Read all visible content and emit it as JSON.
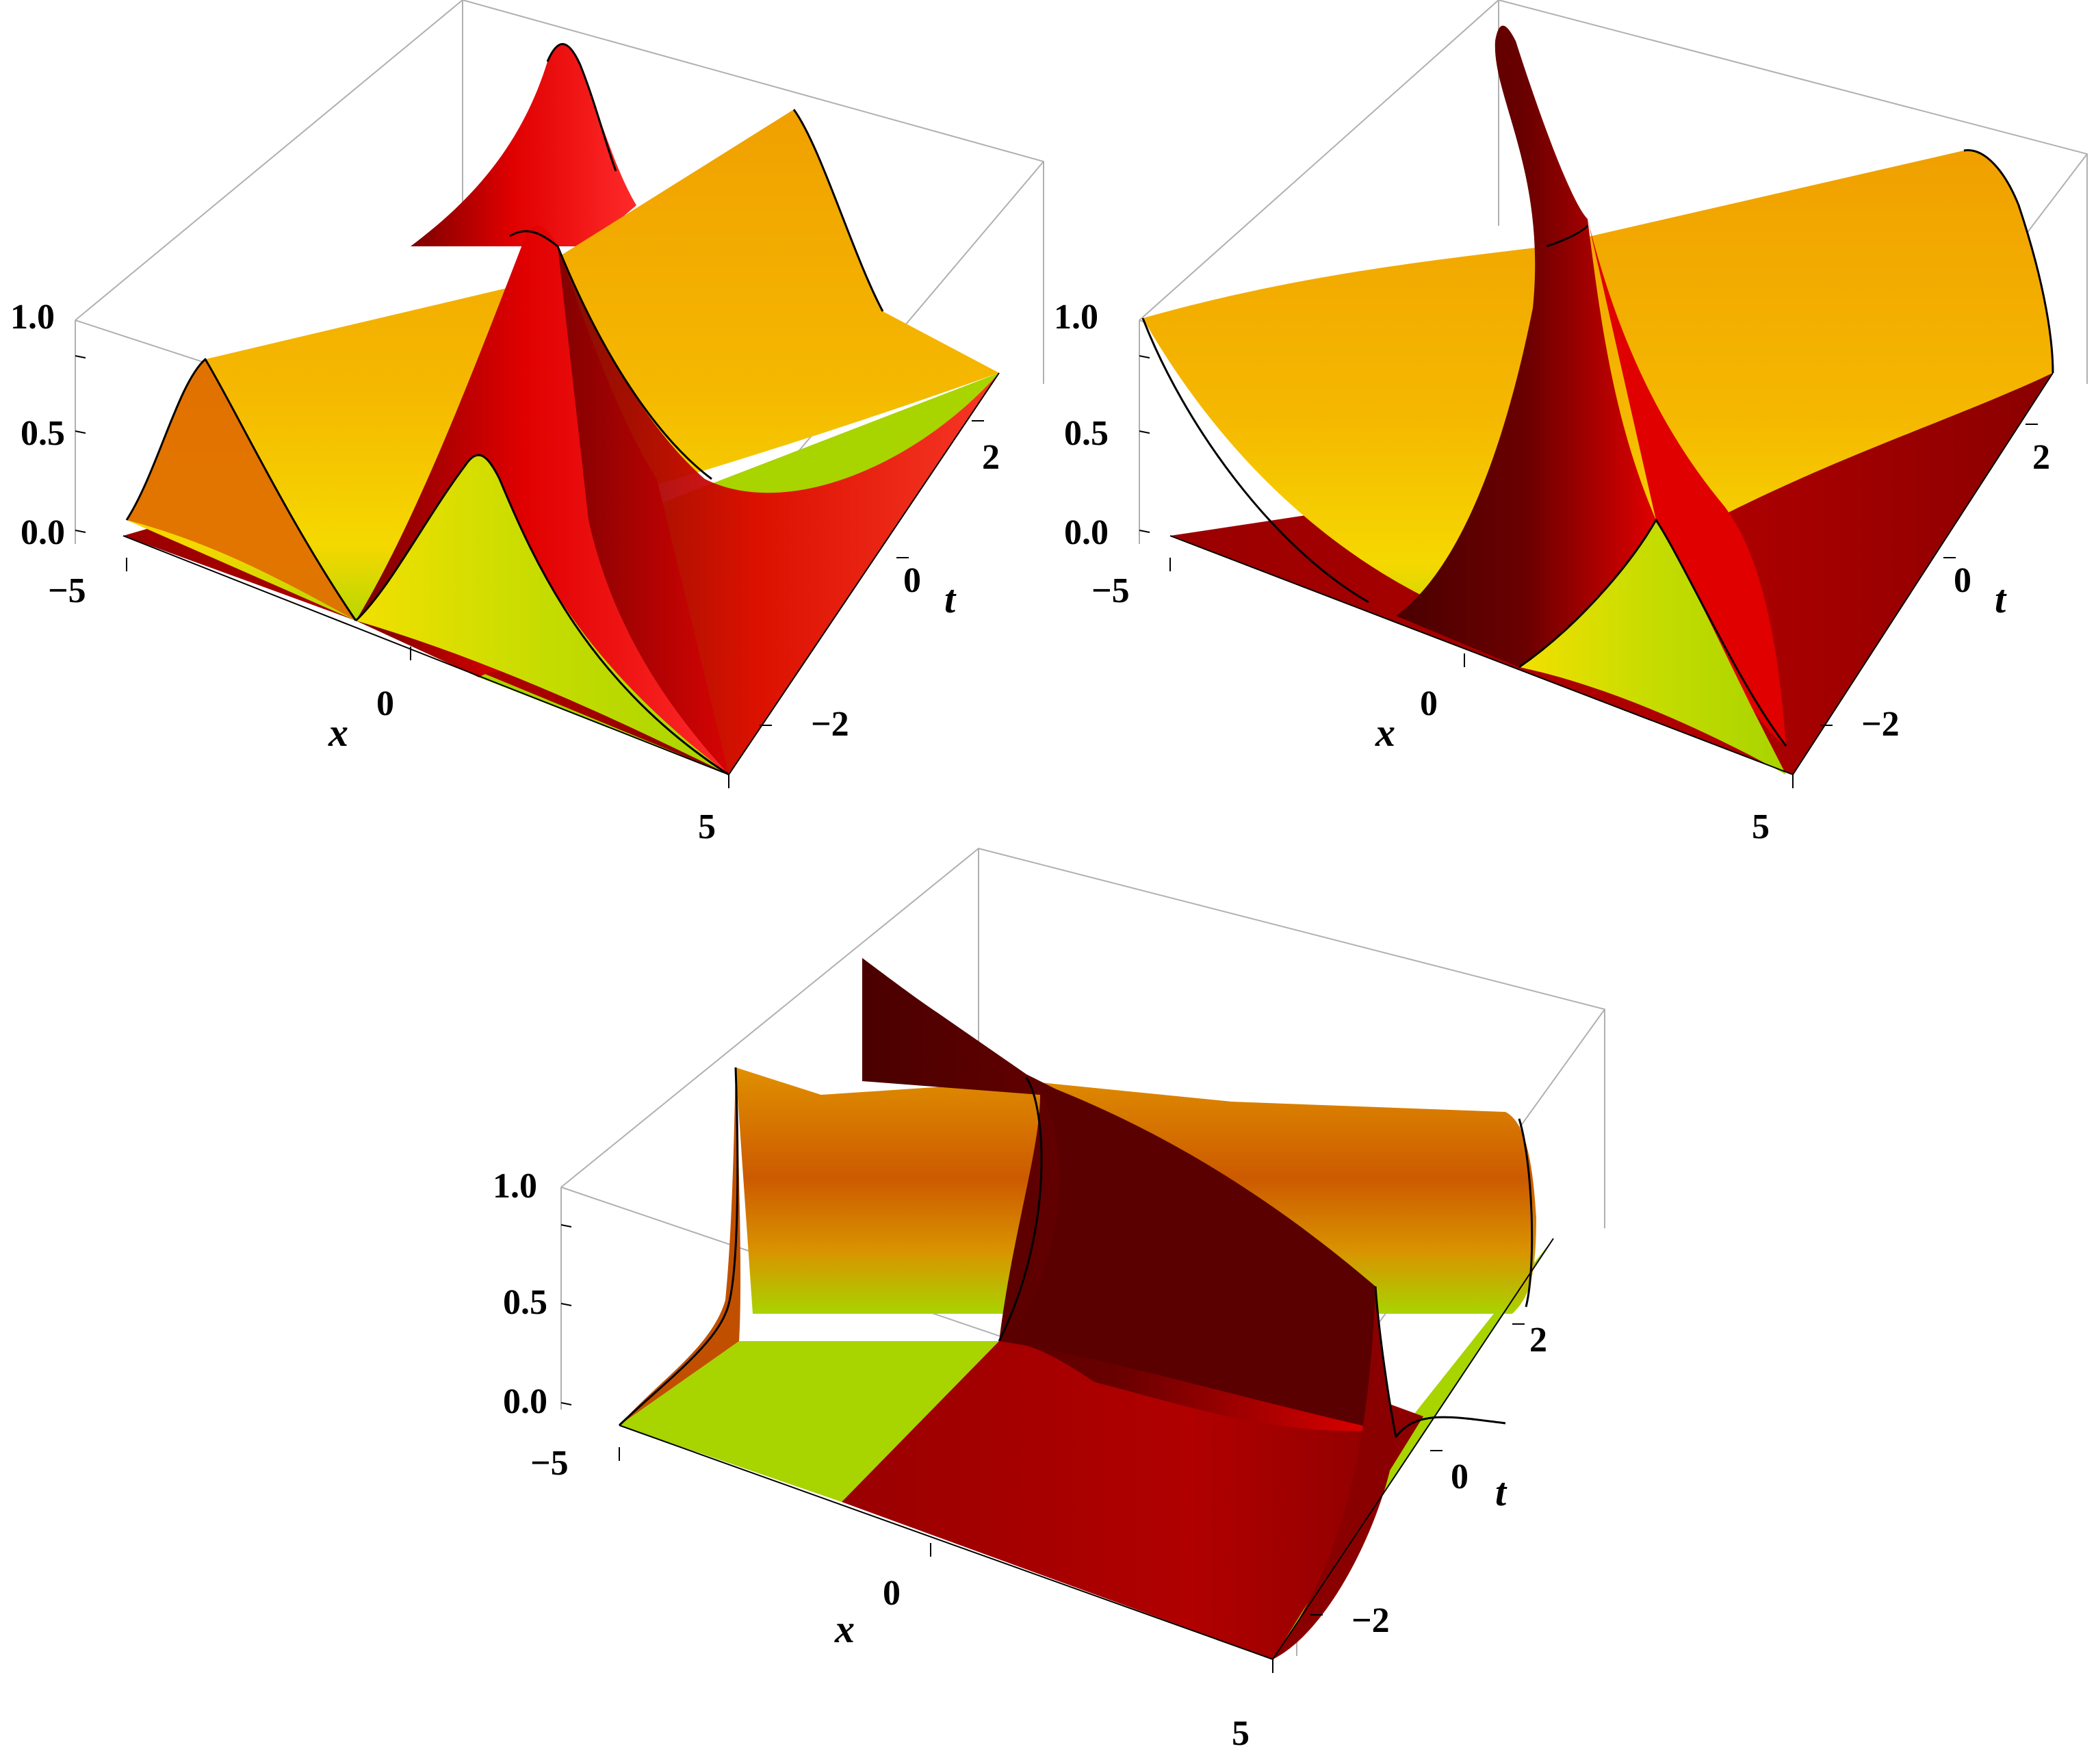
{
  "colors": {
    "dark_red": "#7a0000",
    "red": "#d00000",
    "bright_red": "#ff1a1a",
    "orange": "#f0a000",
    "yellow": "#f5d800",
    "yellow_green": "#a8d400",
    "background": "#ffffff",
    "box": "#b0b0b0"
  },
  "chart_data": [
    {
      "type": "surface",
      "panel": "top-left",
      "title": "",
      "xlabel": "x",
      "ylabel": "t",
      "zlabel": "",
      "xlim": [
        -5,
        5
      ],
      "ylim": [
        -3,
        3
      ],
      "zlim": [
        0,
        1
      ],
      "x_ticks": [
        "−5",
        "0",
        "5"
      ],
      "y_ticks": [
        "−2",
        "0",
        "2"
      ],
      "z_ticks": [
        "0.0",
        "0.5",
        "1.0"
      ],
      "grid": false,
      "features": [
        {
          "kind": "ridge",
          "along": "x",
          "t_center": -0.8,
          "peak": 0.95,
          "color": "orange"
        },
        {
          "kind": "ridge",
          "along": "t",
          "x_center": 1.2,
          "peak": 1.0,
          "color": "red"
        }
      ]
    },
    {
      "type": "surface",
      "panel": "top-right",
      "title": "",
      "xlabel": "x",
      "ylabel": "t",
      "zlabel": "",
      "xlim": [
        -5,
        5
      ],
      "ylim": [
        -3,
        3
      ],
      "zlim": [
        0,
        1
      ],
      "x_ticks": [
        "−5",
        "0",
        "5"
      ],
      "y_ticks": [
        "−2",
        "0",
        "2"
      ],
      "z_ticks": [
        "0.0",
        "0.5",
        "1.0"
      ],
      "grid": false,
      "features": [
        {
          "kind": "ridge",
          "along": "x",
          "t_center": -0.5,
          "peak": 0.95,
          "color": "orange"
        },
        {
          "kind": "ridge",
          "along": "t",
          "x_center": 1.8,
          "peak": 1.0,
          "color": "dark red"
        }
      ]
    },
    {
      "type": "surface",
      "panel": "bottom",
      "title": "",
      "xlabel": "x",
      "ylabel": "t",
      "zlabel": "",
      "xlim": [
        -5,
        5
      ],
      "ylim": [
        -3,
        3
      ],
      "zlim": [
        0,
        1
      ],
      "x_ticks": [
        "−5",
        "0",
        "5"
      ],
      "y_ticks": [
        "−2",
        "0",
        "2"
      ],
      "z_ticks": [
        "0.0",
        "0.5",
        "1.0"
      ],
      "grid": false,
      "features": [
        {
          "kind": "wall",
          "along": "x",
          "t_center": 2.5,
          "peak": 1.0,
          "color": "orange"
        },
        {
          "kind": "wall",
          "along": "t",
          "x_center": 0.8,
          "peak": 1.0,
          "color": "dark red"
        }
      ]
    }
  ]
}
